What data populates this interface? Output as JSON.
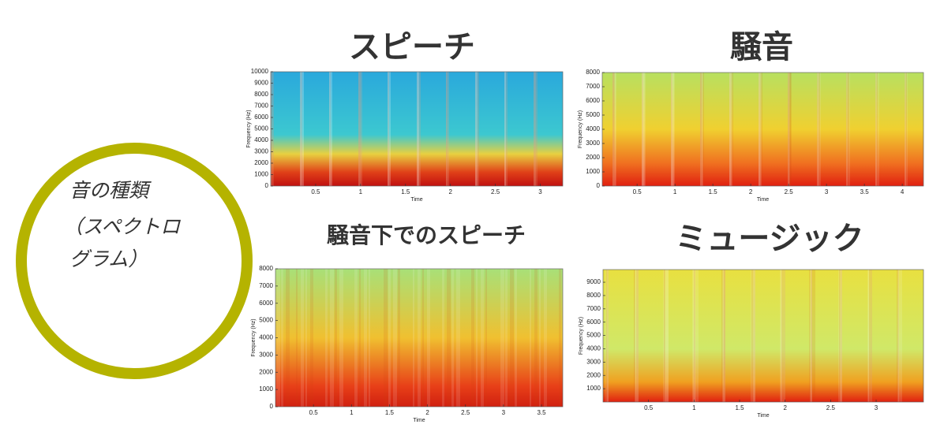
{
  "label": [
    "音の種類",
    "（スペクトロ",
    "グラム）"
  ],
  "chart_data": [
    {
      "type": "heatmap",
      "title": "スピーチ",
      "xlabel": "Time",
      "ylabel": "Frequency (Hz)",
      "xlim": [
        0,
        3.25
      ],
      "ylim": [
        0,
        10000
      ],
      "xticks": [
        0.5,
        1,
        1.5,
        2,
        2.5,
        3
      ],
      "yticks": [
        0,
        1000,
        2000,
        3000,
        4000,
        5000,
        6000,
        7000,
        8000,
        9000,
        10000
      ]
    },
    {
      "type": "heatmap",
      "title": "騒音",
      "xlabel": "Time",
      "ylabel": "Frequency (Hz)",
      "xlim": [
        0.04,
        4.28
      ],
      "ylim": [
        0,
        8000
      ],
      "xticks": [
        0.5,
        1,
        1.5,
        2,
        2.5,
        3,
        3.5,
        4
      ],
      "yticks": [
        0,
        1000,
        2000,
        3000,
        4000,
        5000,
        6000,
        7000,
        8000
      ]
    },
    {
      "type": "heatmap",
      "title": "騒音下でのスピーチ",
      "xlabel": "Time",
      "ylabel": "Frequency (Hz)",
      "xlim": [
        0,
        3.78
      ],
      "ylim": [
        0,
        8000
      ],
      "xticks": [
        0.5,
        1,
        1.5,
        2,
        2.5,
        3,
        3.5
      ],
      "yticks": [
        0,
        1000,
        2000,
        3000,
        4000,
        5000,
        6000,
        7000,
        8000
      ]
    },
    {
      "type": "heatmap",
      "title": "ミュージック",
      "xlabel": "Time",
      "ylabel": "Frequency (Hz)",
      "xlim": [
        0,
        3.52
      ],
      "ylim": [
        0,
        9950
      ],
      "xticks": [
        0.5,
        1,
        1.5,
        2,
        2.5,
        3
      ],
      "yticks": [
        1000,
        2000,
        3000,
        4000,
        5000,
        6000,
        7000,
        8000,
        9000
      ]
    }
  ]
}
